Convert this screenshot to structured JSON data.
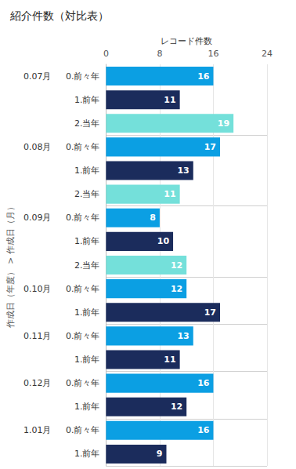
{
  "chart_data": {
    "type": "bar",
    "title": "紹介件数（対比表）",
    "orientation": "horizontal",
    "x_label": "レコード件数",
    "y_label": "作成日（年度） > 作成日（月）",
    "group_labels": [
      "0.07月",
      null,
      null,
      "0.08月",
      null,
      null,
      "0.09月",
      null,
      null,
      "0.10月",
      null,
      "0.11月",
      null,
      "0.12月",
      null,
      "1.01月",
      null
    ],
    "categories": [
      "0.前々年",
      "1.前年",
      "2.当年",
      "0.前々年",
      "1.前年",
      "2.当年",
      "0.前々年",
      "1.前年",
      "2.当年",
      "0.前々年",
      "1.前年",
      "0.前々年",
      "1.前年",
      "0.前々年",
      "1.前年",
      "0.前々年",
      "1.前年"
    ],
    "values": [
      16,
      11,
      19,
      17,
      13,
      11,
      8,
      10,
      12,
      12,
      17,
      13,
      11,
      16,
      12,
      16,
      9
    ],
    "colors": [
      "#0b9fe3",
      "#1b2c5c",
      "#74e0da",
      "#0b9fe3",
      "#1b2c5c",
      "#74e0da",
      "#0b9fe3",
      "#1b2c5c",
      "#74e0da",
      "#0b9fe3",
      "#1b2c5c",
      "#0b9fe3",
      "#1b2c5c",
      "#0b9fe3",
      "#1b2c5c",
      "#0b9fe3",
      "#1b2c5c"
    ],
    "xlim": [
      0,
      24
    ],
    "xticks": [
      0,
      8,
      16,
      24
    ],
    "grid": true,
    "data_labels": true
  }
}
